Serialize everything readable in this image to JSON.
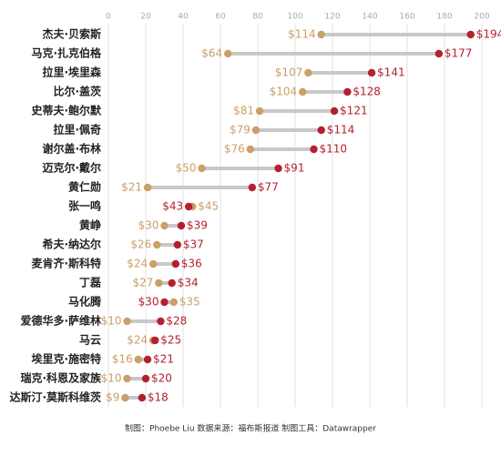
{
  "chart_data": {
    "type": "dumbbell",
    "categories": [
      "杰夫·贝索斯",
      "马克·扎克伯格",
      "拉里·埃里森",
      "比尔·盖茨",
      "史蒂夫·鲍尔默",
      "拉里·佩奇",
      "谢尔盖·布林",
      "迈克尔·戴尔",
      "黄仁勋",
      "张一鸣",
      "黄峥",
      "希夫·纳达尔",
      "麦肯齐·斯科特",
      "丁磊",
      "马化腾",
      "爱德华多·萨维林",
      "马云",
      "埃里克·施密特",
      "瑞克·科恩及家族",
      "达斯汀·莫斯科维茨"
    ],
    "series": [
      {
        "color": "#c9a068",
        "values": [
          114,
          64,
          107,
          104,
          81,
          79,
          76,
          50,
          21,
          45,
          30,
          26,
          24,
          27,
          35,
          10,
          24,
          16,
          10,
          9
        ],
        "value_labels": [
          "$114",
          "$64",
          "$107",
          "$104",
          "$81",
          "$79",
          "$76",
          "$50",
          "$21",
          "$45",
          "$30",
          "$26",
          "$24",
          "$27",
          "$35",
          "$10",
          "$24",
          "$16",
          "$10",
          "$9"
        ]
      },
      {
        "color": "#b5202e",
        "values": [
          194,
          177,
          141,
          128,
          121,
          114,
          110,
          91,
          77,
          43,
          39,
          37,
          36,
          34,
          30,
          28,
          25,
          21,
          20,
          18
        ],
        "value_labels": [
          "$194",
          "$177",
          "$141",
          "$128",
          "$121",
          "$114",
          "$110",
          "$91",
          "$77",
          "$43",
          "$39",
          "$37",
          "$36",
          "$34",
          "$30",
          "$28",
          "$25",
          "$21",
          "$20",
          "$18"
        ]
      }
    ],
    "xlim": [
      0,
      200
    ],
    "xticks": [
      0,
      20,
      40,
      60,
      80,
      100,
      120,
      140,
      160,
      180,
      200
    ],
    "grid": true,
    "source": "制图：Phoebe Liu    数据来源：福布斯报道    制图工具：Datawrapper"
  }
}
